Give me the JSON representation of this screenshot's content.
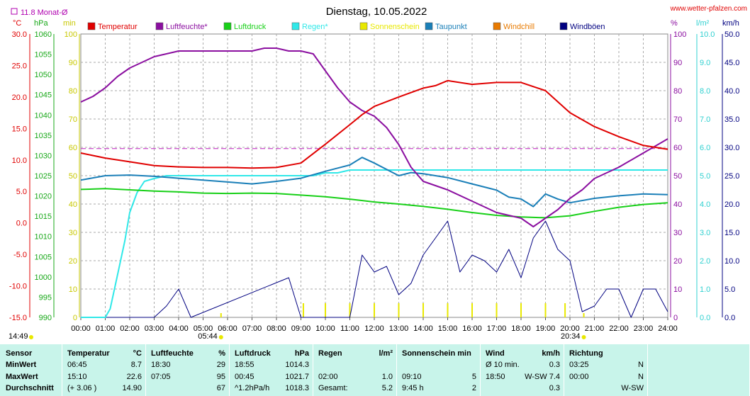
{
  "title": "Dienstag, 10.05.2022",
  "site": "www.wetter-pfalzen.com",
  "monthly_avg_label": "11.8 Monat-Ø",
  "sunrise": "05:44",
  "sunset": "20:34",
  "current_time": "14:49",
  "legend": [
    {
      "label": "Temperatur",
      "color": "#e00000"
    },
    {
      "label": "Luftfeuchte*",
      "color": "#8b0fa0"
    },
    {
      "label": "Luftdruck",
      "color": "#18d018"
    },
    {
      "label": "Regen*",
      "color": "#30e8e8"
    },
    {
      "label": "Sonnenschein",
      "color": "#e8e800"
    },
    {
      "label": "Taupunkt",
      "color": "#1a7fb8"
    },
    {
      "label": "Windchill",
      "color": "#e87a00"
    },
    {
      "label": "Windböen",
      "color": "#000080"
    }
  ],
  "axes": {
    "temp": {
      "unit": "°C",
      "ticks": [
        "30.0",
        "25.0",
        "20.0",
        "15.0",
        "10.0",
        "5.0",
        "0.0",
        "-5.0",
        "-10.0",
        "-15.0"
      ],
      "color": "#e00000"
    },
    "pressure": {
      "unit": "hPa",
      "ticks": [
        "1060",
        "1055",
        "1050",
        "1045",
        "1040",
        "1035",
        "1030",
        "1025",
        "1020",
        "1015",
        "1010",
        "1005",
        "1000",
        "995",
        "990"
      ],
      "color": "#18a818"
    },
    "sun": {
      "unit": "min",
      "ticks": [
        "100",
        "90",
        "80",
        "70",
        "60",
        "50",
        "40",
        "30",
        "20",
        "10",
        "0"
      ],
      "color": "#c8c800"
    },
    "hum": {
      "unit": "%",
      "ticks": [
        "100",
        "90",
        "80",
        "70",
        "60",
        "50",
        "40",
        "30",
        "20",
        "10",
        "0"
      ],
      "color": "#8b0fa0"
    },
    "rain": {
      "unit": "l/m²",
      "ticks": [
        "10.0",
        "9.0",
        "8.0",
        "7.0",
        "6.0",
        "5.0",
        "4.0",
        "3.0",
        "2.0",
        "1.0",
        "0.0"
      ],
      "color": "#30d0d0"
    },
    "wind": {
      "unit": "km/h",
      "ticks": [
        "50.0",
        "45.0",
        "40.0",
        "35.0",
        "30.0",
        "25.0",
        "20.0",
        "15.0",
        "10.0",
        "5.0",
        "0.0"
      ],
      "color": "#000080"
    },
    "x": [
      "00:00",
      "01:00",
      "02:00",
      "03:00",
      "04:00",
      "05:00",
      "06:00",
      "07:00",
      "08:00",
      "09:00",
      "10:00",
      "11:00",
      "12:00",
      "13:00",
      "14:00",
      "15:00",
      "16:00",
      "17:00",
      "18:00",
      "19:00",
      "20:00",
      "21:00",
      "22:00",
      "23:00",
      "24:00"
    ]
  },
  "chart_data": {
    "type": "line",
    "title": "Dienstag, 10.05.2022",
    "x_unit": "hours",
    "monthly_avg_temp": 11.8,
    "series": [
      {
        "name": "Temperatur",
        "unit": "°C",
        "x": [
          0,
          1,
          2,
          3,
          4,
          5,
          6,
          7,
          8,
          9,
          10,
          11,
          11.5,
          12,
          13,
          14,
          14.5,
          15,
          16,
          17,
          18,
          19,
          20,
          21,
          22,
          23,
          24
        ],
        "values": [
          11.1,
          10.3,
          9.7,
          9.1,
          8.9,
          8.8,
          8.8,
          8.7,
          8.8,
          9.5,
          12.5,
          15.6,
          17.2,
          18.5,
          20,
          21.4,
          21.8,
          22.6,
          22,
          22.3,
          22.3,
          21,
          17.5,
          15.3,
          13.7,
          12.3,
          11.7
        ]
      },
      {
        "name": "Luftfeuchte*",
        "unit": "%",
        "x": [
          0,
          0.5,
          1,
          1.5,
          2,
          2.5,
          3,
          3.5,
          4,
          5,
          6,
          7,
          7.5,
          8,
          8.5,
          9,
          9.5,
          10,
          10.5,
          11,
          11.5,
          12,
          12.5,
          13,
          13.5,
          14,
          15,
          16,
          17,
          18,
          18.5,
          19,
          19.5,
          20,
          20.5,
          21,
          22,
          23,
          24
        ],
        "values": [
          76,
          78,
          81,
          85,
          88,
          90,
          92,
          93,
          94,
          94,
          94,
          94,
          95,
          95,
          94,
          94,
          93,
          87,
          81,
          76,
          73,
          71,
          67,
          61,
          53,
          48,
          45,
          41,
          37,
          35,
          32,
          35,
          38,
          42,
          45,
          49,
          53,
          58,
          63
        ]
      },
      {
        "name": "Luftdruck",
        "unit": "hPa",
        "x": [
          0,
          1,
          2,
          3,
          4,
          5,
          6,
          7,
          8,
          9,
          10,
          11,
          12,
          13,
          14,
          15,
          16,
          17,
          18,
          19,
          20,
          21,
          22,
          23,
          24
        ],
        "values": [
          1021.6,
          1021.8,
          1021.5,
          1021.2,
          1021,
          1020.7,
          1020.6,
          1020.7,
          1020.6,
          1020.2,
          1019.8,
          1019.2,
          1018.5,
          1018,
          1017.4,
          1016.7,
          1015.9,
          1015.2,
          1014.8,
          1014.6,
          1015.1,
          1016.2,
          1017.2,
          1017.9,
          1018.3
        ]
      },
      {
        "name": "Regen*",
        "unit": "l/m²",
        "x": [
          0,
          1,
          1.2,
          1.5,
          1.8,
          2,
          2.3,
          2.6,
          3,
          3.5,
          9.5,
          10,
          10.5,
          11,
          11.5,
          24
        ],
        "values": [
          0,
          0,
          0.3,
          1.5,
          2.7,
          3.7,
          4.4,
          4.8,
          4.9,
          5,
          5,
          5.1,
          5.1,
          5.2,
          5.2,
          5.2
        ]
      },
      {
        "name": "Taupunkt",
        "unit": "°C",
        "x": [
          0,
          1,
          2,
          3,
          4,
          5,
          6,
          7,
          8,
          9,
          10,
          10.5,
          11,
          11.5,
          12,
          13,
          13.5,
          14,
          15,
          16,
          17,
          17.5,
          18,
          18.5,
          19,
          19.5,
          20,
          21,
          22,
          23,
          24
        ],
        "values": [
          6.8,
          7.5,
          7.6,
          7.4,
          7.1,
          6.8,
          6.5,
          6.2,
          6.6,
          7.1,
          8.2,
          8.7,
          9.2,
          10.4,
          9.5,
          7.5,
          8,
          7.8,
          7.2,
          6.2,
          5.2,
          4.1,
          3.8,
          2.6,
          4.6,
          3.8,
          3.2,
          3.9,
          4.3,
          4.6,
          4.5
        ]
      },
      {
        "name": "Windböen",
        "unit": "km/h",
        "x": [
          0,
          3,
          3.5,
          4,
          4.5,
          8.5,
          9,
          11,
          11.5,
          12,
          12.5,
          13,
          13.5,
          14,
          14.5,
          15,
          15.5,
          16,
          16.5,
          17,
          17.5,
          18,
          18.5,
          19,
          19.5,
          20,
          20.5,
          21,
          21.5,
          22,
          22.5,
          23,
          23.5,
          24
        ],
        "values": [
          0,
          0,
          2,
          5,
          0,
          7,
          0,
          0,
          11,
          8,
          9,
          4,
          6,
          11,
          14,
          17,
          8,
          11,
          10,
          8,
          12,
          7,
          14,
          17,
          12,
          10,
          1,
          2,
          5,
          5,
          0,
          5,
          5,
          1
        ]
      },
      {
        "name": "Sonnenschein",
        "unit": "min",
        "x": [
          9.1,
          10,
          11,
          12,
          13,
          14,
          15,
          15.5,
          16,
          17,
          18,
          19,
          19.8
        ],
        "values": [
          5,
          5,
          5,
          5,
          5,
          5,
          5,
          0,
          5,
          5,
          5,
          5,
          5
        ]
      }
    ]
  },
  "stats": {
    "headers": {
      "sensor": "Sensor",
      "temp": "Temperatur",
      "temp_unit": "°C",
      "hum": "Luftfeuchte",
      "hum_unit": "%",
      "press": "Luftdruck",
      "press_unit": "hPa",
      "rain": "Regen",
      "rain_unit": "l/m²",
      "sun": "Sonnenschein min",
      "wind": "Wind",
      "wind_unit": "km/h",
      "dir": "Richtung"
    },
    "rows": [
      {
        "label": "MinWert",
        "temp_time": "06:45",
        "temp_val": "8.7",
        "hum_time": "18:30",
        "hum_val": "29",
        "press_time": "18:55",
        "press_val": "1014.3",
        "rain_time": "",
        "rain_val": "",
        "sun_time": "",
        "sun_val": "",
        "wind_time": "Ø 10 min.",
        "wind_val": "0.3",
        "dir_time": "03:25",
        "dir_val": "N"
      },
      {
        "label": "MaxWert",
        "temp_time": "15:10",
        "temp_val": "22.6",
        "hum_time": "07:05",
        "hum_val": "95",
        "press_time": "00:45",
        "press_val": "1021.7",
        "rain_time": "02:00",
        "rain_val": "1.0",
        "sun_time": "09:10",
        "sun_val": "5",
        "wind_time": "18:50",
        "wind_val": "W-SW 7.4",
        "dir_time": "00:00",
        "dir_val": "N"
      },
      {
        "label": "Durchschnitt",
        "temp_time": "(+ 3.06 )",
        "temp_val": "14.90",
        "hum_time": "",
        "hum_val": "67",
        "press_time": "^1.2hPa/h",
        "press_val": "1018.3",
        "rain_time": "Gesamt:",
        "rain_val": "5.2",
        "sun_time": "9:45 h",
        "sun_val": "2",
        "wind_time": "",
        "wind_val": "0.3",
        "dir_time": "",
        "dir_val": "W-SW"
      }
    ]
  }
}
